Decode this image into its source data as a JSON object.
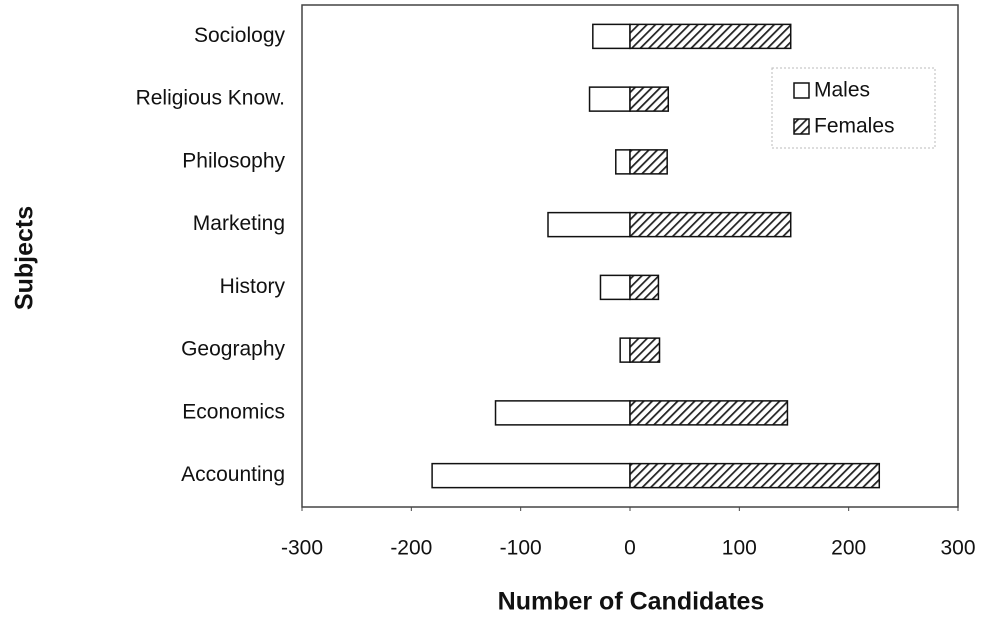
{
  "chart_data": {
    "type": "bar",
    "orientation": "horizontal",
    "xlabel": "Number of Candidates",
    "ylabel": "Subjects",
    "categories": [
      "Accounting",
      "Economics",
      "Geography",
      "History",
      "Marketing",
      "Philosophy",
      "Religious Know.",
      "Sociology"
    ],
    "series": [
      {
        "name": "Males",
        "color": "#ffffff",
        "values": [
          -181,
          -123,
          -9,
          -27,
          -75,
          -13,
          -37,
          -34
        ]
      },
      {
        "name": "Females",
        "color": "#222222",
        "pattern": "hatch",
        "values": [
          228,
          144,
          27,
          26,
          147,
          34,
          35,
          147
        ]
      }
    ],
    "xlim": [
      -300,
      300
    ],
    "xticks": [
      -300,
      -200,
      -100,
      0,
      100,
      200,
      300
    ],
    "legend": "upper right"
  }
}
